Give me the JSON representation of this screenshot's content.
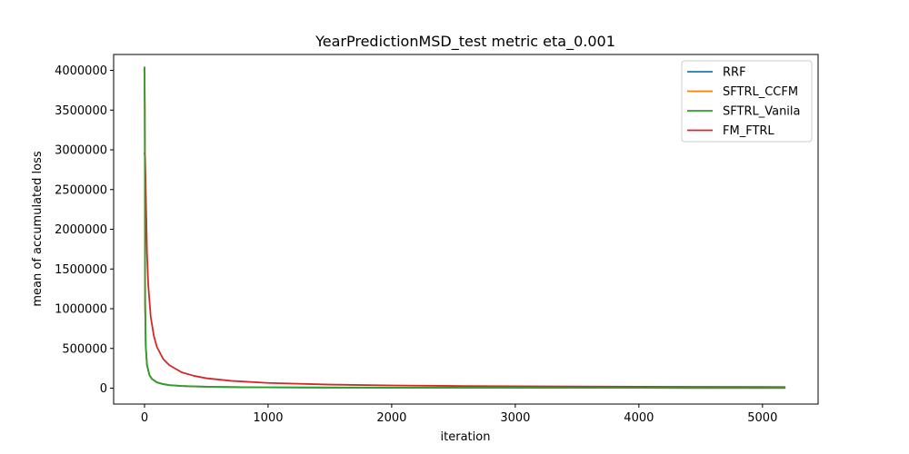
{
  "chart_data": {
    "type": "line",
    "title": "YearPredictionMSD_test metric eta_0.001",
    "xlabel": "iteration",
    "ylabel": "mean of accumulated loss",
    "xlim": [
      -250,
      5450
    ],
    "ylim": [
      -200000,
      4200000
    ],
    "xticks": [
      0,
      1000,
      2000,
      3000,
      4000,
      5000
    ],
    "yticks": [
      0,
      500000,
      1000000,
      1500000,
      2000000,
      2500000,
      3000000,
      3500000,
      4000000
    ],
    "xtick_labels": [
      "0",
      "1000",
      "2000",
      "3000",
      "4000",
      "5000"
    ],
    "ytick_labels": [
      "0",
      "500000",
      "1000000",
      "1500000",
      "2000000",
      "2500000",
      "3000000",
      "3500000",
      "4000000"
    ],
    "legend_position": "top-right",
    "series": [
      {
        "name": "RRF",
        "color": "#1f77b4",
        "x": [
          0,
          2,
          5,
          10,
          20,
          40,
          60,
          100,
          150,
          200,
          300,
          400,
          600,
          800,
          1000,
          1500,
          2000,
          2500,
          3000,
          3500,
          4000,
          4500,
          5000,
          5180
        ],
        "y": [
          4020000,
          3500000,
          1050000,
          520000,
          290000,
          160000,
          115000,
          72000,
          50000,
          38000,
          27000,
          21000,
          15000,
          12000,
          10000,
          7500,
          6000,
          5200,
          4600,
          4200,
          3900,
          3600,
          3400,
          3300
        ]
      },
      {
        "name": "SFTRL_CCFM",
        "color": "#ff7f0e",
        "x": [
          0,
          2,
          5,
          10,
          20,
          40,
          60,
          100,
          150,
          200,
          300,
          400,
          600,
          800,
          1000,
          1500,
          2000,
          2500,
          3000,
          3500,
          4000,
          4500,
          5000,
          5180
        ],
        "y": [
          4030000,
          3510000,
          1060000,
          525000,
          292000,
          162000,
          116000,
          73000,
          51000,
          38500,
          27500,
          21500,
          15300,
          12200,
          10200,
          7600,
          6100,
          5300,
          4700,
          4300,
          4000,
          3700,
          3500,
          3400
        ]
      },
      {
        "name": "SFTRL_Vanila",
        "color": "#2ca02c",
        "x": [
          0,
          2,
          5,
          10,
          20,
          40,
          60,
          100,
          150,
          200,
          300,
          400,
          600,
          800,
          1000,
          1500,
          2000,
          2500,
          3000,
          3500,
          4000,
          4500,
          5000,
          5180
        ],
        "y": [
          4040000,
          3520000,
          1070000,
          530000,
          295000,
          164000,
          118000,
          74000,
          52000,
          39000,
          28000,
          22000,
          15600,
          12400,
          10400,
          7700,
          6200,
          5400,
          4800,
          4400,
          4100,
          3800,
          3600,
          3500
        ]
      },
      {
        "name": "FM_FTRL",
        "color": "#d62728",
        "x": [
          0,
          5,
          10,
          20,
          30,
          50,
          75,
          100,
          150,
          200,
          300,
          400,
          500,
          700,
          1000,
          1500,
          2000,
          2500,
          3000,
          3500,
          4000,
          4500,
          5000,
          5180
        ],
        "y": [
          2960000,
          2900000,
          2500000,
          1700000,
          1300000,
          900000,
          660000,
          520000,
          370000,
          290000,
          200000,
          155000,
          125000,
          92000,
          66000,
          45000,
          34000,
          28000,
          24000,
          21000,
          18500,
          16500,
          15000,
          14500
        ]
      }
    ]
  }
}
